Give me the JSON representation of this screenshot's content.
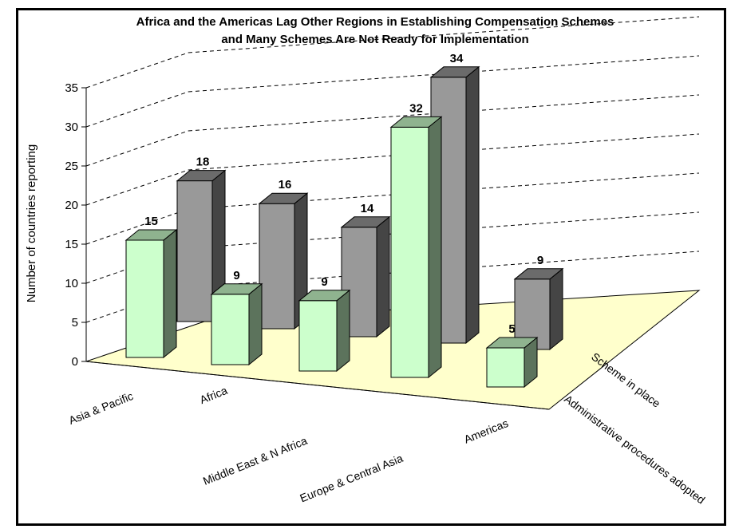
{
  "chart_data": {
    "type": "bar",
    "title_lines": [
      "Africa and the Americas Lag Other Regions in Establishing Compensation Schemes",
      "and Many Schemes Are Not Ready for Implementation"
    ],
    "ylabel": "Number of countries reporting",
    "ylim": [
      0,
      35
    ],
    "yticks": [
      "0",
      "5",
      "10",
      "15",
      "20",
      "25",
      "30",
      "35"
    ],
    "categories": [
      "Asia & Pacific",
      "Africa",
      "Middle East & N Africa",
      "Europe & Central Asia",
      "Americas"
    ],
    "series": [
      {
        "name": "Scheme in place",
        "values": [
          18,
          16,
          14,
          34,
          9
        ],
        "color": "#999999"
      },
      {
        "name": "Administrative procedures adopted",
        "values": [
          15,
          9,
          9,
          32,
          5
        ],
        "color": "#ccffcc"
      }
    ],
    "grid": true,
    "floor_color": "#ffffcc"
  }
}
